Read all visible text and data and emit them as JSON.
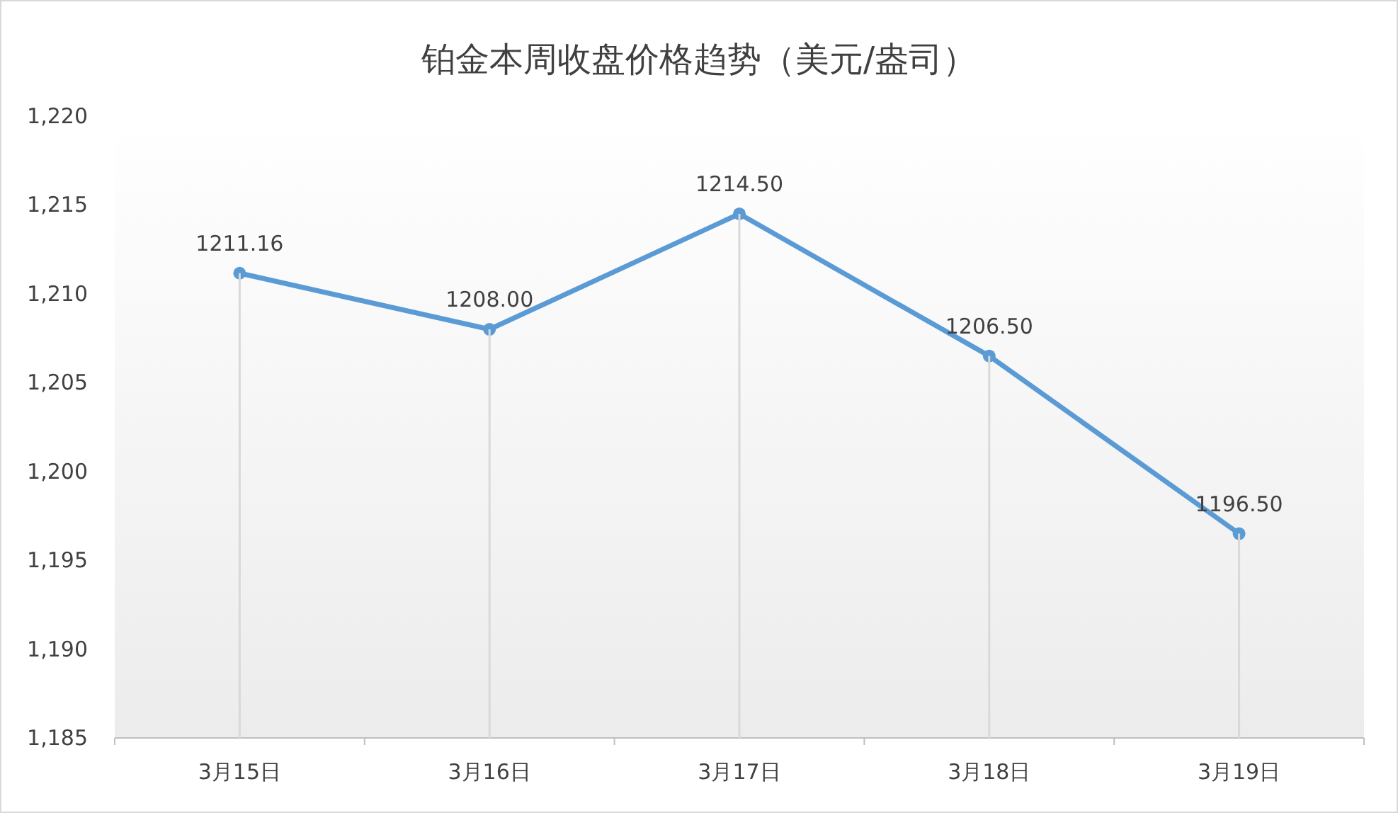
{
  "chart_data": {
    "type": "line",
    "title": "铂金本周收盘价格趋势（美元/盎司）",
    "categories": [
      "3月15日",
      "3月16日",
      "3月17日",
      "3月18日",
      "3月19日"
    ],
    "series": [
      {
        "color": "#5b9bd5",
        "values": [
          1211.16,
          1208.0,
          1214.5,
          1206.5,
          1196.5
        ],
        "value_labels": [
          "1211.16",
          "1208.00",
          "1214.50",
          "1206.50",
          "1196.50"
        ]
      }
    ],
    "ylim": [
      1185,
      1220
    ],
    "yticks": [
      {
        "value": 1185,
        "label": "1,185"
      },
      {
        "value": 1190,
        "label": "1,190"
      },
      {
        "value": 1195,
        "label": "1,195"
      },
      {
        "value": 1200,
        "label": "1,200"
      },
      {
        "value": 1205,
        "label": "1,205"
      },
      {
        "value": 1210,
        "label": "1,210"
      },
      {
        "value": 1215,
        "label": "1,215"
      },
      {
        "value": 1220,
        "label": "1,220"
      }
    ],
    "grid": "x",
    "marker": "circle",
    "line_style": "solid"
  }
}
